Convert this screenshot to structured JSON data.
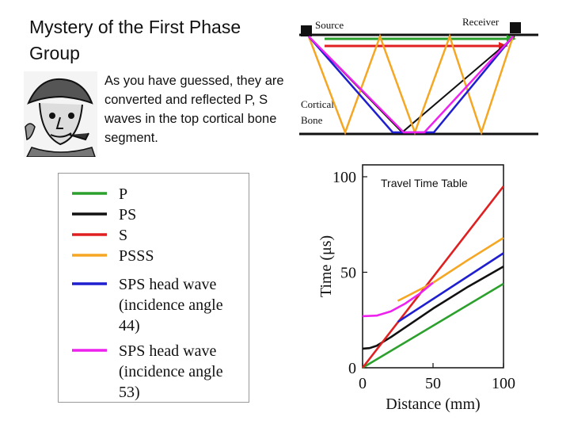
{
  "slide": {
    "title": "Mystery of the First Phase Group",
    "body": "As you have guessed, they are converted and reflected P, S waves in the top cortical bone segment."
  },
  "diagram": {
    "source_label": "Source",
    "receiver_label": "Receiver",
    "bone_label_line1": "Cortical",
    "bone_label_line2": "Bone"
  },
  "legend": {
    "entries": [
      {
        "name": "P",
        "color": "#2ca02c",
        "lines": [
          "P"
        ]
      },
      {
        "name": "PS",
        "color": "#111111",
        "lines": [
          "PS"
        ]
      },
      {
        "name": "S",
        "color": "#e02020",
        "lines": [
          "S"
        ]
      },
      {
        "name": "PSSS",
        "color": "#f5a623",
        "lines": [
          "PSSS"
        ]
      },
      {
        "name": "SPS head wave 44",
        "color": "#1f1fd0",
        "lines": [
          "SPS head wave",
          "(incidence angle",
          "44)"
        ]
      },
      {
        "name": "SPS head wave 53",
        "color": "#ee22ee",
        "lines": [
          "SPS head wave",
          "(incidence angle",
          "53)"
        ]
      }
    ]
  },
  "chart_data": {
    "type": "line",
    "title": "Travel Time Table",
    "xlabel": "Distance (mm)",
    "ylabel": "Time (μs)",
    "xlim": [
      0,
      100
    ],
    "ylim": [
      0,
      100
    ],
    "xticks": [
      0,
      50,
      100
    ],
    "yticks": [
      0,
      50,
      100
    ],
    "series": [
      {
        "name": "P",
        "color": "#2ca02c",
        "x": [
          0,
          100
        ],
        "y": [
          0,
          44
        ]
      },
      {
        "name": "PS",
        "color": "#111111",
        "x": [
          0,
          5,
          10,
          20,
          30,
          50,
          75,
          100
        ],
        "y": [
          10,
          10.3,
          11.5,
          16,
          21,
          31,
          42.5,
          53
        ]
      },
      {
        "name": "S",
        "color": "#e02020",
        "x": [
          0,
          100
        ],
        "y": [
          0,
          95
        ]
      },
      {
        "name": "PSSS",
        "color": "#f5a623",
        "x": [
          25,
          50,
          75,
          100
        ],
        "y": [
          35,
          44.5,
          56.5,
          68
        ]
      },
      {
        "name": "SPS head wave 44",
        "color": "#1f1fd0",
        "x": [
          25,
          100
        ],
        "y": [
          24,
          60
        ]
      },
      {
        "name": "SPS head wave 53",
        "color": "#ee22ee",
        "x": [
          0,
          10,
          20,
          30,
          40,
          50
        ],
        "y": [
          27,
          27.3,
          29.5,
          33.5,
          38.5,
          44.5
        ]
      }
    ]
  }
}
